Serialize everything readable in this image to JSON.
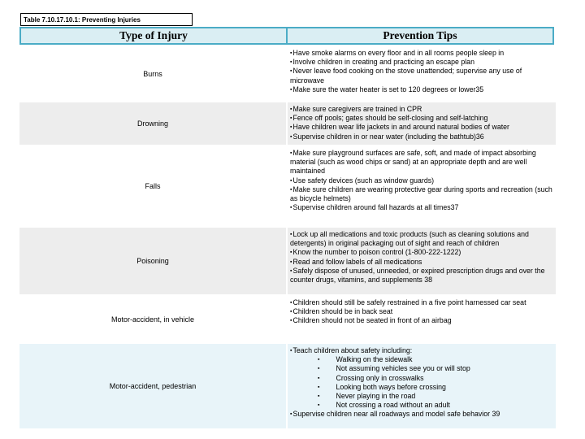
{
  "caption": {
    "text": "Table 7.10.17.10.1: Preventing Injuries"
  },
  "icons": {
    "bullet": "▪"
  },
  "colors": {
    "header_fill": "#daeef3",
    "header_border": "#4bacc6",
    "row_white": "#ffffff",
    "row_gray": "#ededed",
    "row_blue": "#e8f4f9",
    "text": "#000000"
  },
  "table": {
    "headers": [
      "Type of Injury",
      "Prevention Tips"
    ],
    "rows": [
      {
        "injury": "Burns",
        "shade": "white",
        "tips": [
          {
            "level": 0,
            "text": "Have smoke alarms on every floor and in all rooms people sleep in"
          },
          {
            "level": 0,
            "text": "Involve children in creating and practicing an escape plan"
          },
          {
            "level": 0,
            "text": "Never leave food cooking on the stove unattended; supervise any use of microwave"
          },
          {
            "level": 0,
            "text": "Make sure the water heater is set to 120 degrees or lower35"
          }
        ]
      },
      {
        "injury": "Drowning",
        "shade": "gray",
        "tips": [
          {
            "level": 0,
            "text": "Make sure caregivers are trained in CPR"
          },
          {
            "level": 0,
            "text": "Fence off pools; gates should be self-closing and self-latching"
          },
          {
            "level": 0,
            "text": "Have children wear life jackets in and around natural bodies of water"
          },
          {
            "level": 0,
            "text": "Supervise children in or near water (including the bathtub)36"
          }
        ]
      },
      {
        "injury": "Falls",
        "shade": "white",
        "tips": [
          {
            "level": 0,
            "text": "Make sure playground surfaces are safe, soft, and made of impact absorbing material (such as wood chips or sand) at an appropriate depth and are well maintained"
          },
          {
            "level": 0,
            "text": "Use safety devices (such as window guards)"
          },
          {
            "level": 0,
            "text": "Make sure children are wearing protective gear during sports and recreation (such as bicycle helmets)"
          },
          {
            "level": 0,
            "text": "Supervise children around fall hazards at all times37"
          }
        ]
      },
      {
        "injury": "Poisoning",
        "shade": "gray",
        "tips": [
          {
            "level": 0,
            "text": "Lock up all medications and toxic products (such as cleaning solutions and detergents) in original packaging out of sight and reach of children"
          },
          {
            "level": 0,
            "text": "Know the number to poison control (1-800-222-1222)"
          },
          {
            "level": 0,
            "text": "Read and follow labels of all medications"
          },
          {
            "level": 0,
            "text": "Safely dispose of unused, unneeded, or expired prescription drugs and over the counter drugs, vitamins, and supplements 38"
          }
        ]
      },
      {
        "injury": "Motor-accident, in vehicle",
        "shade": "white",
        "tips": [
          {
            "level": 0,
            "text": "Children should still be safely restrained in a five point harnessed car seat"
          },
          {
            "level": 0,
            "text": "Children should be in back seat"
          },
          {
            "level": 0,
            "text": "Children should not be seated in front of an airbag"
          }
        ]
      },
      {
        "injury": "Motor-accident, pedestrian",
        "shade": "blue",
        "tips": [
          {
            "level": 0,
            "text": "Teach children about safety including:"
          },
          {
            "level": 1,
            "text": "Walking on the sidewalk"
          },
          {
            "level": 1,
            "text": "Not assuming vehicles see you or will stop"
          },
          {
            "level": 1,
            "text": "Crossing only in crosswalks"
          },
          {
            "level": 1,
            "text": "Looking both ways before crossing"
          },
          {
            "level": 1,
            "text": "Never playing in the road"
          },
          {
            "level": 1,
            "text": "Not crossing a road without an adult"
          },
          {
            "level": 0,
            "text": "Supervise children near all roadways and model safe behavior 39"
          }
        ]
      }
    ]
  }
}
